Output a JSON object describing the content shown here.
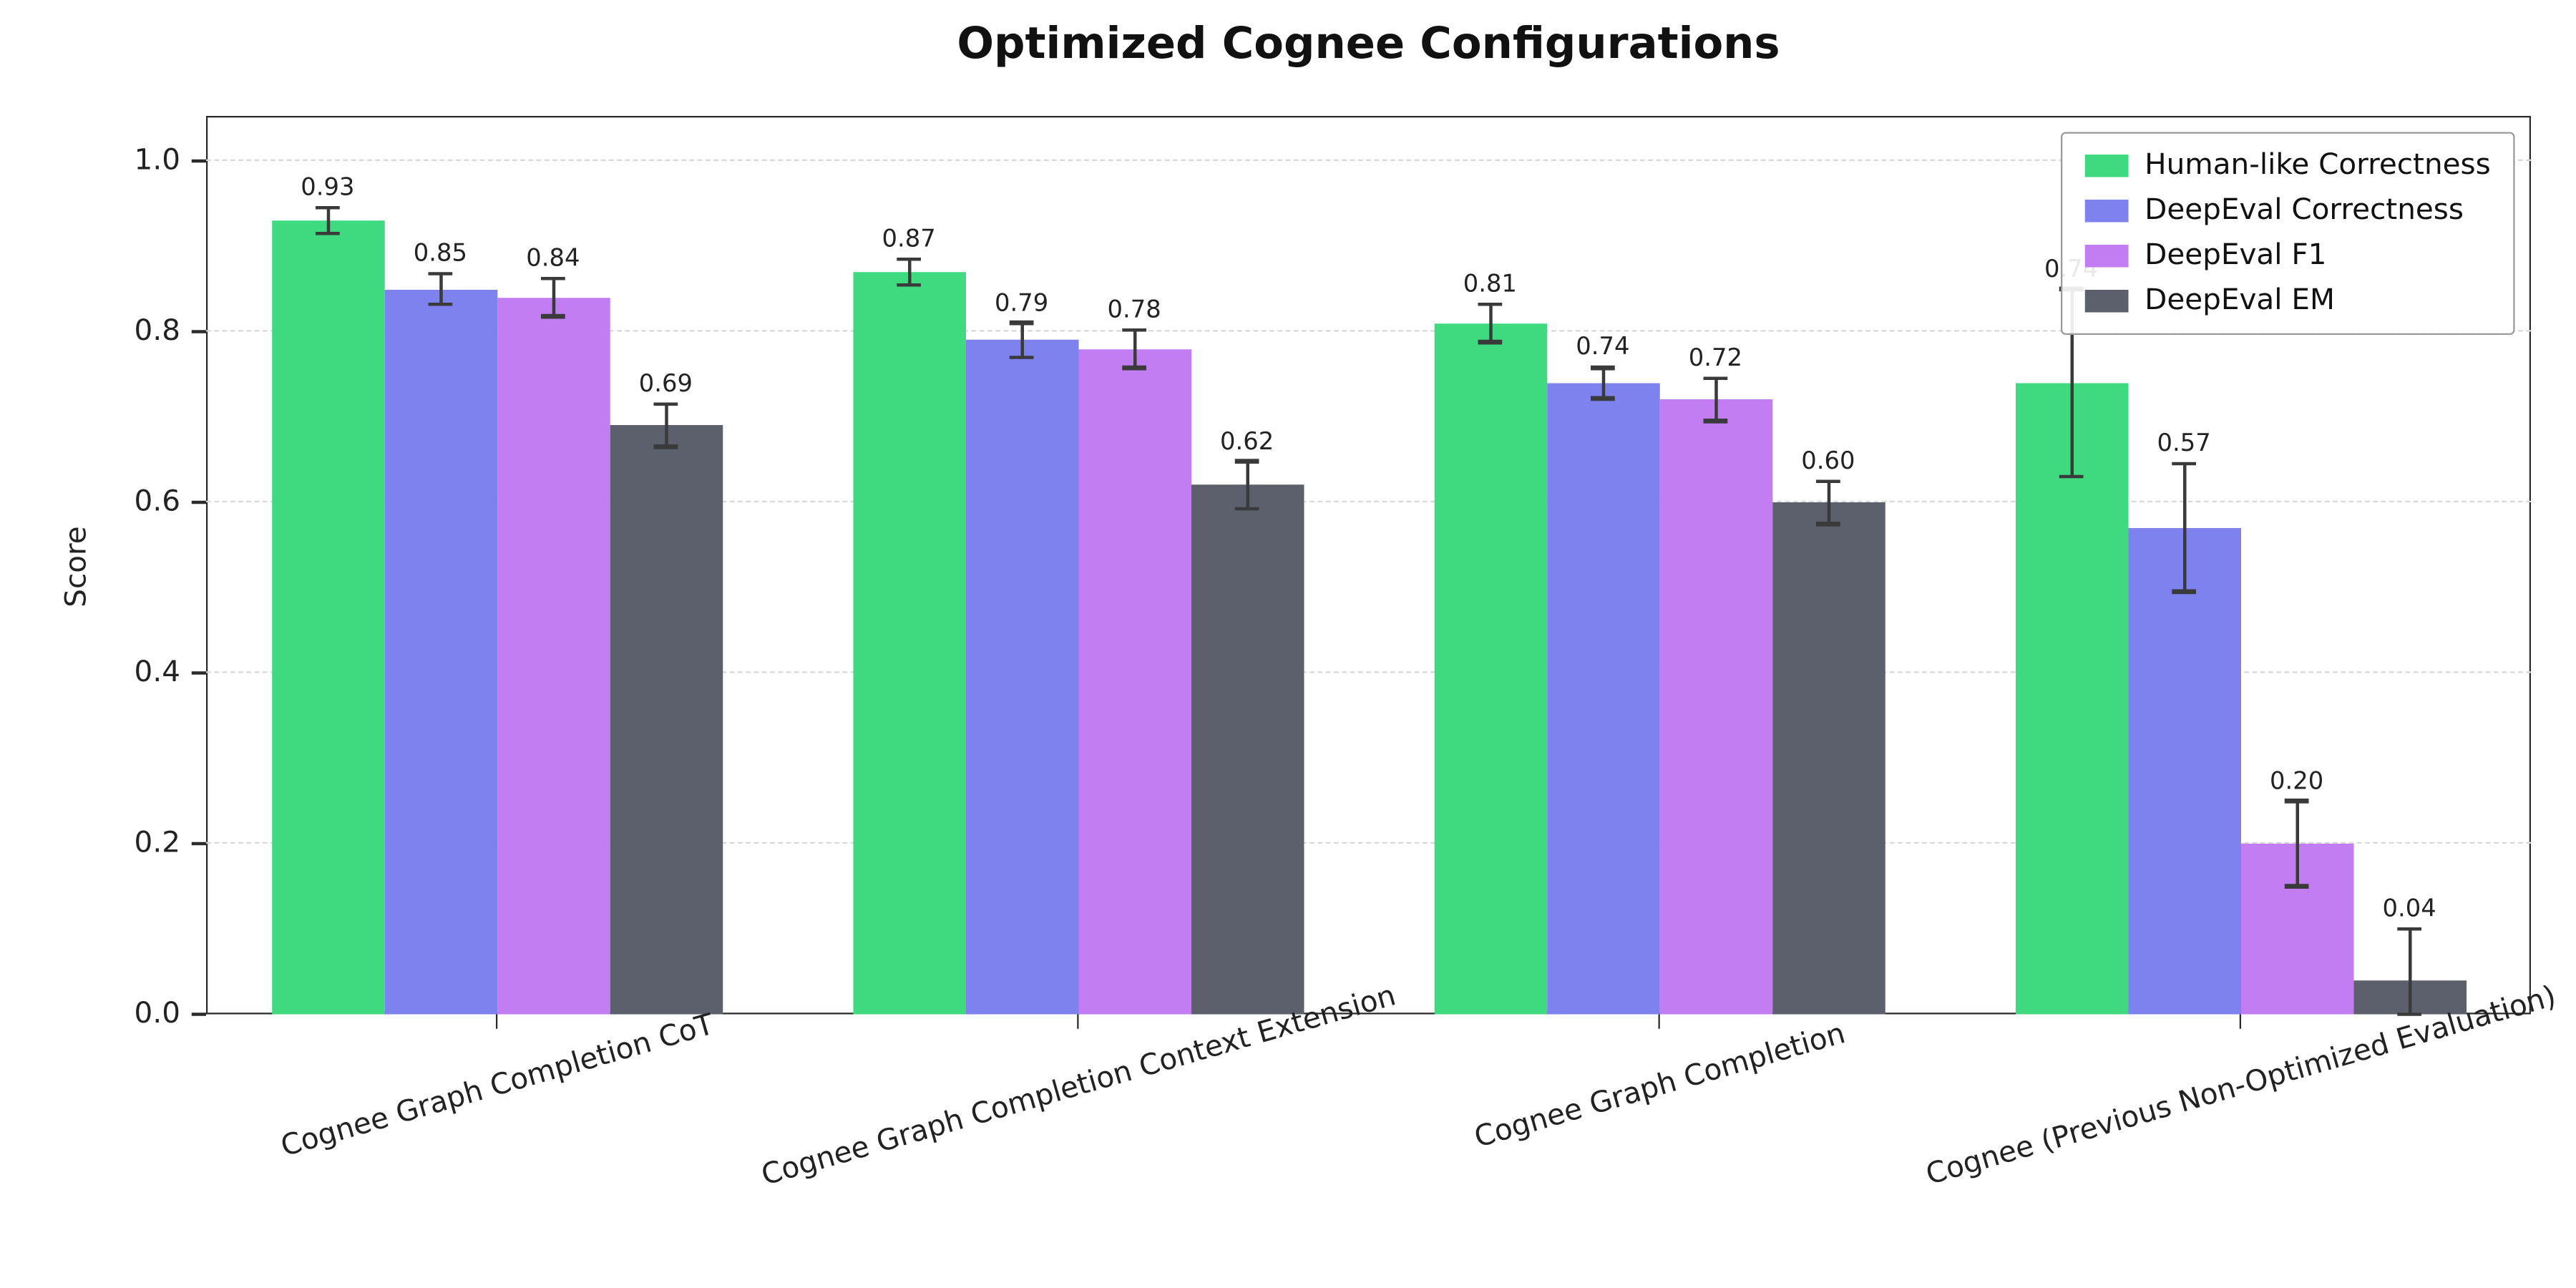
{
  "title": "Optimized Cognee Configurations",
  "chart_data": {
    "type": "bar",
    "title": "Optimized Cognee Configurations",
    "ylabel": "Score",
    "ylim": [
      0.0,
      1.05
    ],
    "yticks": [
      0.0,
      0.2,
      0.4,
      0.6,
      0.8,
      1.0
    ],
    "grid": "horizontal-dashed",
    "legend_position": "upper right",
    "categories": [
      "Cognee Graph Completion CoT",
      "Cognee Graph Completion Context Extension",
      "Cognee Graph Completion",
      "Cognee (Previous Non-Optimized Evaluation)"
    ],
    "series": [
      {
        "name": "Human-like Correctness",
        "color": "#3fd97f",
        "values": [
          0.93,
          0.87,
          0.81,
          0.74
        ],
        "errors": [
          0.015,
          0.015,
          0.022,
          0.11
        ]
      },
      {
        "name": "DeepEval Correctness",
        "color": "#7d82ef",
        "values": [
          0.85,
          0.79,
          0.74,
          0.57
        ],
        "errors": [
          0.018,
          0.02,
          0.018,
          0.075
        ]
      },
      {
        "name": "DeepEval F1",
        "color": "#c27df2",
        "values": [
          0.84,
          0.78,
          0.72,
          0.2
        ],
        "errors": [
          0.022,
          0.022,
          0.025,
          0.05
        ]
      },
      {
        "name": "DeepEval EM",
        "color": "#5b606c",
        "values": [
          0.69,
          0.62,
          0.6,
          0.04
        ],
        "errors": [
          0.025,
          0.028,
          0.025,
          0.06
        ]
      }
    ]
  }
}
